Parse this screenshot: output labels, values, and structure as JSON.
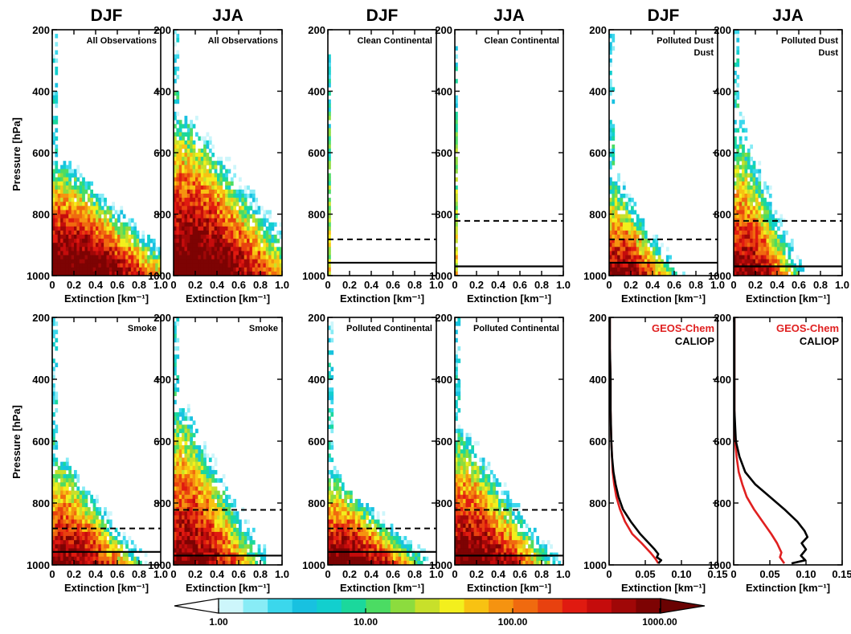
{
  "figure": {
    "seasons": [
      "DJF",
      "JJA",
      "DJF",
      "JJA",
      "DJF",
      "JJA"
    ],
    "ylabel": "Pressure [hPa]",
    "xlabel": "Extinction [km⁻¹]",
    "colorbar_ticks": [
      "1.00",
      "10.00",
      "100.00",
      "1000.00"
    ]
  },
  "chart_data": [
    {
      "type": "heatmap",
      "season": "DJF",
      "label_lines": [
        "All Observations"
      ],
      "ylim": [
        1000,
        200
      ],
      "xlim": [
        0,
        1.0
      ],
      "yticks": [
        200,
        400,
        600,
        800,
        1000
      ],
      "xticks": [
        "0",
        "0.2",
        "0.4",
        "0.6",
        "0.8",
        "1.0"
      ],
      "mode": "all",
      "top_pressure": 620,
      "solid_line": null,
      "dashed_line": null
    },
    {
      "type": "heatmap",
      "season": "JJA",
      "label_lines": [
        "All Observations"
      ],
      "ylim": [
        1000,
        200
      ],
      "xlim": [
        0,
        1.0
      ],
      "yticks": [
        200,
        400,
        600,
        800,
        1000
      ],
      "xticks": [
        "0",
        "0.2",
        "0.4",
        "0.6",
        "0.8",
        "1.0"
      ],
      "mode": "all",
      "top_pressure": 460,
      "solid_line": null,
      "dashed_line": null
    },
    {
      "type": "heatmap",
      "season": "DJF",
      "label_lines": [
        "Clean Continental"
      ],
      "ylim": [
        1000,
        200
      ],
      "xlim": [
        0,
        1.0
      ],
      "yticks": [
        200,
        400,
        600,
        800,
        1000
      ],
      "xticks": [
        "0",
        "0.2",
        "0.4",
        "0.6",
        "0.8",
        "1.0"
      ],
      "mode": "clean",
      "top_pressure": 240,
      "solid_line": 958,
      "dashed_line": 882
    },
    {
      "type": "heatmap",
      "season": "JJA",
      "label_lines": [
        "Clean Continental"
      ],
      "ylim": [
        1000,
        200
      ],
      "xlim": [
        0,
        1.0
      ],
      "yticks": [
        200,
        400,
        600,
        800,
        1000
      ],
      "xticks": [
        "0",
        "0.2",
        "0.4",
        "0.6",
        "0.8",
        "1.0"
      ],
      "mode": "clean",
      "top_pressure": 240,
      "solid_line": 970,
      "dashed_line": 822
    },
    {
      "type": "heatmap",
      "season": "DJF",
      "label_lines": [
        "Polluted Dust",
        "Dust"
      ],
      "ylim": [
        1000,
        200
      ],
      "xlim": [
        0,
        1.0
      ],
      "yticks": [
        200,
        400,
        600,
        800,
        1000
      ],
      "xticks": [
        "0",
        "0.2",
        "0.4",
        "0.6",
        "0.8",
        "1.0"
      ],
      "mode": "dust",
      "top_pressure": 640,
      "solid_line": 958,
      "dashed_line": 882
    },
    {
      "type": "heatmap",
      "season": "JJA",
      "label_lines": [
        "Polluted Dust",
        "Dust"
      ],
      "ylim": [
        1000,
        200
      ],
      "xlim": [
        0,
        1.0
      ],
      "yticks": [
        200,
        400,
        600,
        800,
        1000
      ],
      "xticks": [
        "0",
        "0.2",
        "0.4",
        "0.6",
        "0.8",
        "1.0"
      ],
      "mode": "dust",
      "top_pressure": 460,
      "solid_line": 970,
      "dashed_line": 822
    },
    {
      "type": "heatmap",
      "season": "DJF",
      "label_lines": [
        "Smoke"
      ],
      "ylim": [
        1000,
        200
      ],
      "xlim": [
        0,
        1.0
      ],
      "yticks": [
        200,
        400,
        600,
        800,
        1000
      ],
      "xticks": [
        "0",
        "0.2",
        "0.4",
        "0.6",
        "0.8",
        "1.0"
      ],
      "mode": "smoke",
      "top_pressure": 630,
      "solid_line": 958,
      "dashed_line": 882
    },
    {
      "type": "heatmap",
      "season": "JJA",
      "label_lines": [
        "Smoke"
      ],
      "ylim": [
        1000,
        200
      ],
      "xlim": [
        0,
        1.0
      ],
      "yticks": [
        200,
        400,
        600,
        800,
        1000
      ],
      "xticks": [
        "0",
        "0.2",
        "0.4",
        "0.6",
        "0.8",
        "1.0"
      ],
      "mode": "smoke",
      "top_pressure": 460,
      "solid_line": 970,
      "dashed_line": 822
    },
    {
      "type": "heatmap",
      "season": "DJF",
      "label_lines": [
        "Polluted Continental"
      ],
      "ylim": [
        1000,
        200
      ],
      "xlim": [
        0,
        1.0
      ],
      "yticks": [
        200,
        400,
        600,
        800,
        1000
      ],
      "xticks": [
        "0",
        "0.2",
        "0.4",
        "0.6",
        "0.8",
        "1.0"
      ],
      "mode": "polluted",
      "top_pressure": 680,
      "solid_line": 958,
      "dashed_line": 882
    },
    {
      "type": "heatmap",
      "season": "JJA",
      "label_lines": [
        "Polluted Continental"
      ],
      "ylim": [
        1000,
        200
      ],
      "xlim": [
        0,
        1.0
      ],
      "yticks": [
        200,
        400,
        600,
        800,
        1000
      ],
      "xticks": [
        "0",
        "0.2",
        "0.4",
        "0.6",
        "0.8",
        "1.0"
      ],
      "mode": "polluted",
      "top_pressure": 530,
      "solid_line": 970,
      "dashed_line": 822
    },
    {
      "type": "line",
      "season": "DJF",
      "ylim": [
        1000,
        200
      ],
      "xlim": [
        0,
        0.15
      ],
      "yticks": [
        200,
        400,
        600,
        800,
        1000
      ],
      "xticks": [
        "0",
        "0.05",
        "0.10",
        "0.15"
      ],
      "legend": [
        {
          "name": "GEOS-Chem",
          "color": "#e02020"
        },
        {
          "name": "CALIOP",
          "color": "#000000"
        }
      ],
      "series": [
        {
          "name": "GEOS-Chem",
          "color": "#e02020",
          "x": [
            0.001,
            0.001,
            0.002,
            0.002,
            0.003,
            0.004,
            0.005,
            0.007,
            0.01,
            0.015,
            0.022,
            0.032,
            0.045,
            0.057,
            0.064,
            0.068
          ],
          "y": [
            200,
            300,
            400,
            500,
            600,
            650,
            700,
            740,
            780,
            820,
            860,
            900,
            930,
            960,
            980,
            995
          ]
        },
        {
          "name": "CALIOP",
          "color": "#000000",
          "x": [
            0.001,
            0.001,
            0.002,
            0.002,
            0.003,
            0.004,
            0.006,
            0.009,
            0.013,
            0.019,
            0.03,
            0.043,
            0.055,
            0.063,
            0.068,
            0.066,
            0.072,
            0.068
          ],
          "y": [
            200,
            300,
            400,
            500,
            600,
            650,
            700,
            740,
            780,
            820,
            860,
            900,
            930,
            950,
            965,
            975,
            985,
            995
          ]
        }
      ]
    },
    {
      "type": "line",
      "season": "JJA",
      "ylim": [
        1000,
        200
      ],
      "xlim": [
        0,
        0.15
      ],
      "yticks": [
        200,
        400,
        600,
        800,
        1000
      ],
      "xticks": [
        "0",
        "0.05",
        "0.10",
        "0.15"
      ],
      "legend": [
        {
          "name": "GEOS-Chem",
          "color": "#e02020"
        },
        {
          "name": "CALIOP",
          "color": "#000000"
        }
      ],
      "series": [
        {
          "name": "GEOS-Chem",
          "color": "#e02020",
          "x": [
            0.001,
            0.001,
            0.001,
            0.001,
            0.002,
            0.004,
            0.007,
            0.012,
            0.018,
            0.028,
            0.04,
            0.052,
            0.06,
            0.066,
            0.064,
            0.067,
            0.07
          ],
          "y": [
            200,
            300,
            400,
            500,
            600,
            650,
            700,
            740,
            780,
            820,
            860,
            900,
            930,
            960,
            975,
            985,
            995
          ]
        },
        {
          "name": "CALIOP",
          "color": "#000000",
          "x": [
            0.001,
            0.001,
            0.001,
            0.001,
            0.003,
            0.008,
            0.016,
            0.03,
            0.05,
            0.07,
            0.088,
            0.098,
            0.102,
            0.094,
            0.1,
            0.093,
            0.099,
            0.08
          ],
          "y": [
            200,
            300,
            400,
            500,
            600,
            650,
            700,
            740,
            780,
            820,
            860,
            890,
            910,
            930,
            950,
            970,
            985,
            995
          ]
        }
      ]
    }
  ]
}
